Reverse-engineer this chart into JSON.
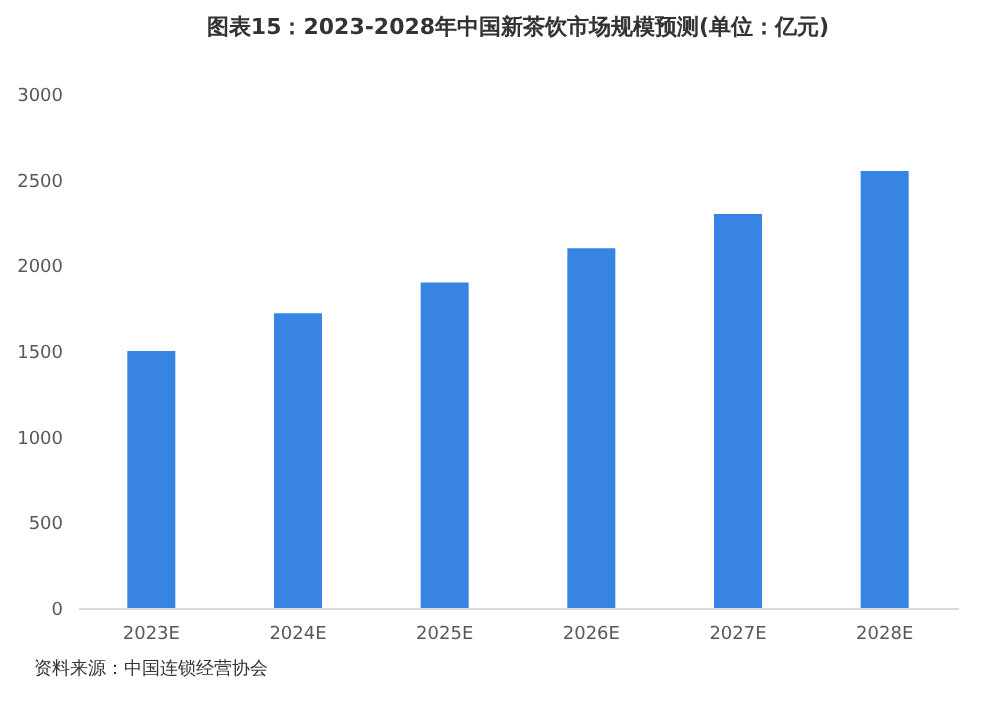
{
  "chart_data": {
    "type": "bar",
    "title": "图表15：2023-2028年中国新茶饮市场规模预测(单位：亿元)",
    "categories": [
      "2023E",
      "2024E",
      "2025E",
      "2026E",
      "2027E",
      "2028E"
    ],
    "values": [
      1500,
      1720,
      1900,
      2100,
      2300,
      2550
    ],
    "color": "#3784e4",
    "ylim": [
      0,
      3000
    ],
    "yticks": [
      0,
      500,
      1000,
      1500,
      2000,
      2500,
      3000
    ],
    "grid": false,
    "annotations": [
      "资料来源：中国连锁经营协会"
    ]
  }
}
